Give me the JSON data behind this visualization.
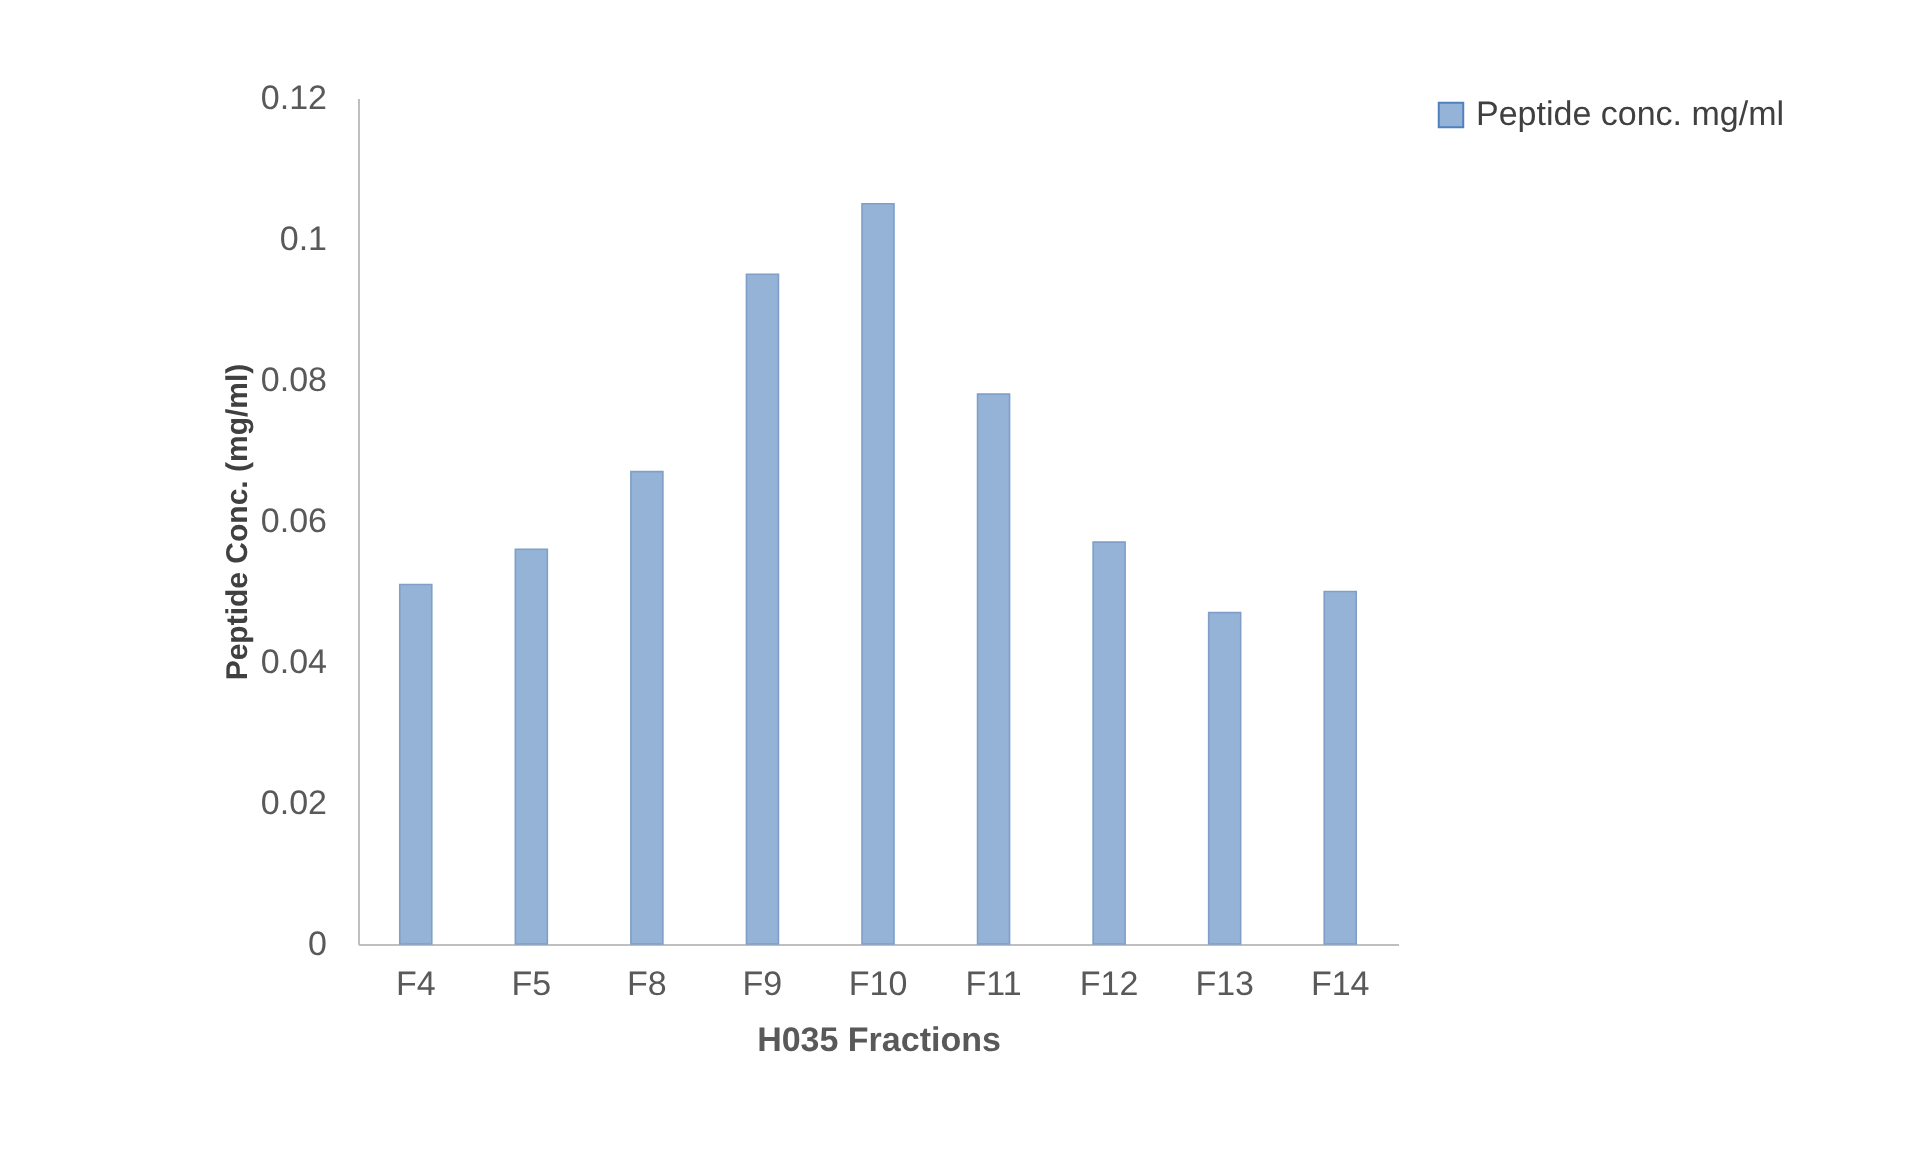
{
  "chart_data": {
    "type": "bar",
    "xlabel": "H035 Fractions",
    "ylabel": "Peptide Conc. (mg/ml)",
    "categories": [
      "F4",
      "F5",
      "F8",
      "F9",
      "F10",
      "F11",
      "F12",
      "F13",
      "F14"
    ],
    "series": [
      {
        "name": "Peptide conc. mg/ml",
        "color": "#95b3d7",
        "values": [
          0.051,
          0.056,
          0.067,
          0.095,
          0.105,
          0.078,
          0.057,
          0.047,
          0.05
        ]
      }
    ],
    "ylim": [
      0,
      0.12
    ],
    "yticks": [
      0,
      0.02,
      0.04,
      0.06,
      0.08,
      0.1,
      0.12
    ],
    "grid": false,
    "legend": "right"
  }
}
